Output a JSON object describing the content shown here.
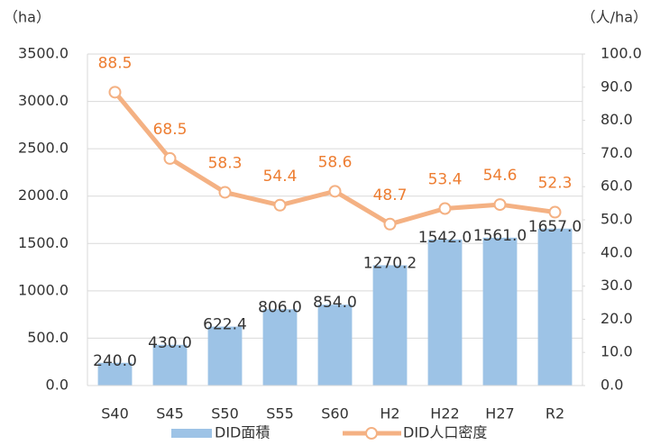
{
  "chart_data": {
    "type": "combo",
    "y_label": "（ha）",
    "y2_label": "（人/ha）",
    "categories": [
      "S40",
      "S45",
      "S50",
      "S55",
      "S60",
      "H2",
      "H22",
      "H27",
      "R2"
    ],
    "series": [
      {
        "name": "DID面積",
        "type": "bar",
        "color": "#9dc3e6",
        "label_color": "#333333",
        "values": [
          240,
          430,
          622.4,
          806,
          854,
          1270.2,
          1542,
          1561,
          1657
        ],
        "value_labels": [
          "240.0",
          "430.0",
          "622.4",
          "806.0",
          "854.0",
          "1270.2",
          "1542.0",
          "1561.0",
          "1657.0"
        ]
      },
      {
        "name": "DID人口密度",
        "type": "line",
        "axis": "y2",
        "color": "#f4b183",
        "label_color": "#ed7d31",
        "values": [
          88.5,
          68.5,
          58.3,
          54.4,
          58.6,
          48.7,
          53.4,
          54.6,
          52.3
        ]
      }
    ],
    "ylim": [
      0,
      3500
    ],
    "yticks": [
      {
        "value": 0,
        "label": "0.0"
      },
      {
        "value": 500,
        "label": "500.0"
      },
      {
        "value": 1000,
        "label": "1000.0"
      },
      {
        "value": 1500,
        "label": "1500.0"
      },
      {
        "value": 2000,
        "label": "2000.0"
      },
      {
        "value": 2500,
        "label": "2500.0"
      },
      {
        "value": 3000,
        "label": "3000.0"
      },
      {
        "value": 3500,
        "label": "3500.0"
      }
    ],
    "y2lim": [
      0,
      100
    ],
    "y2ticks": [
      {
        "value": 0,
        "label": "0.0"
      },
      {
        "value": 10,
        "label": "10.0"
      },
      {
        "value": 20,
        "label": "20.0"
      },
      {
        "value": 30,
        "label": "30.0"
      },
      {
        "value": 40,
        "label": "40.0"
      },
      {
        "value": 50,
        "label": "50.0"
      },
      {
        "value": 60,
        "label": "60.0"
      },
      {
        "value": 70,
        "label": "70.0"
      },
      {
        "value": 80,
        "label": "80.0"
      },
      {
        "value": 90,
        "label": "90.0"
      },
      {
        "value": 100,
        "label": "100.0"
      }
    ],
    "grid": true,
    "legend": "bottom"
  }
}
